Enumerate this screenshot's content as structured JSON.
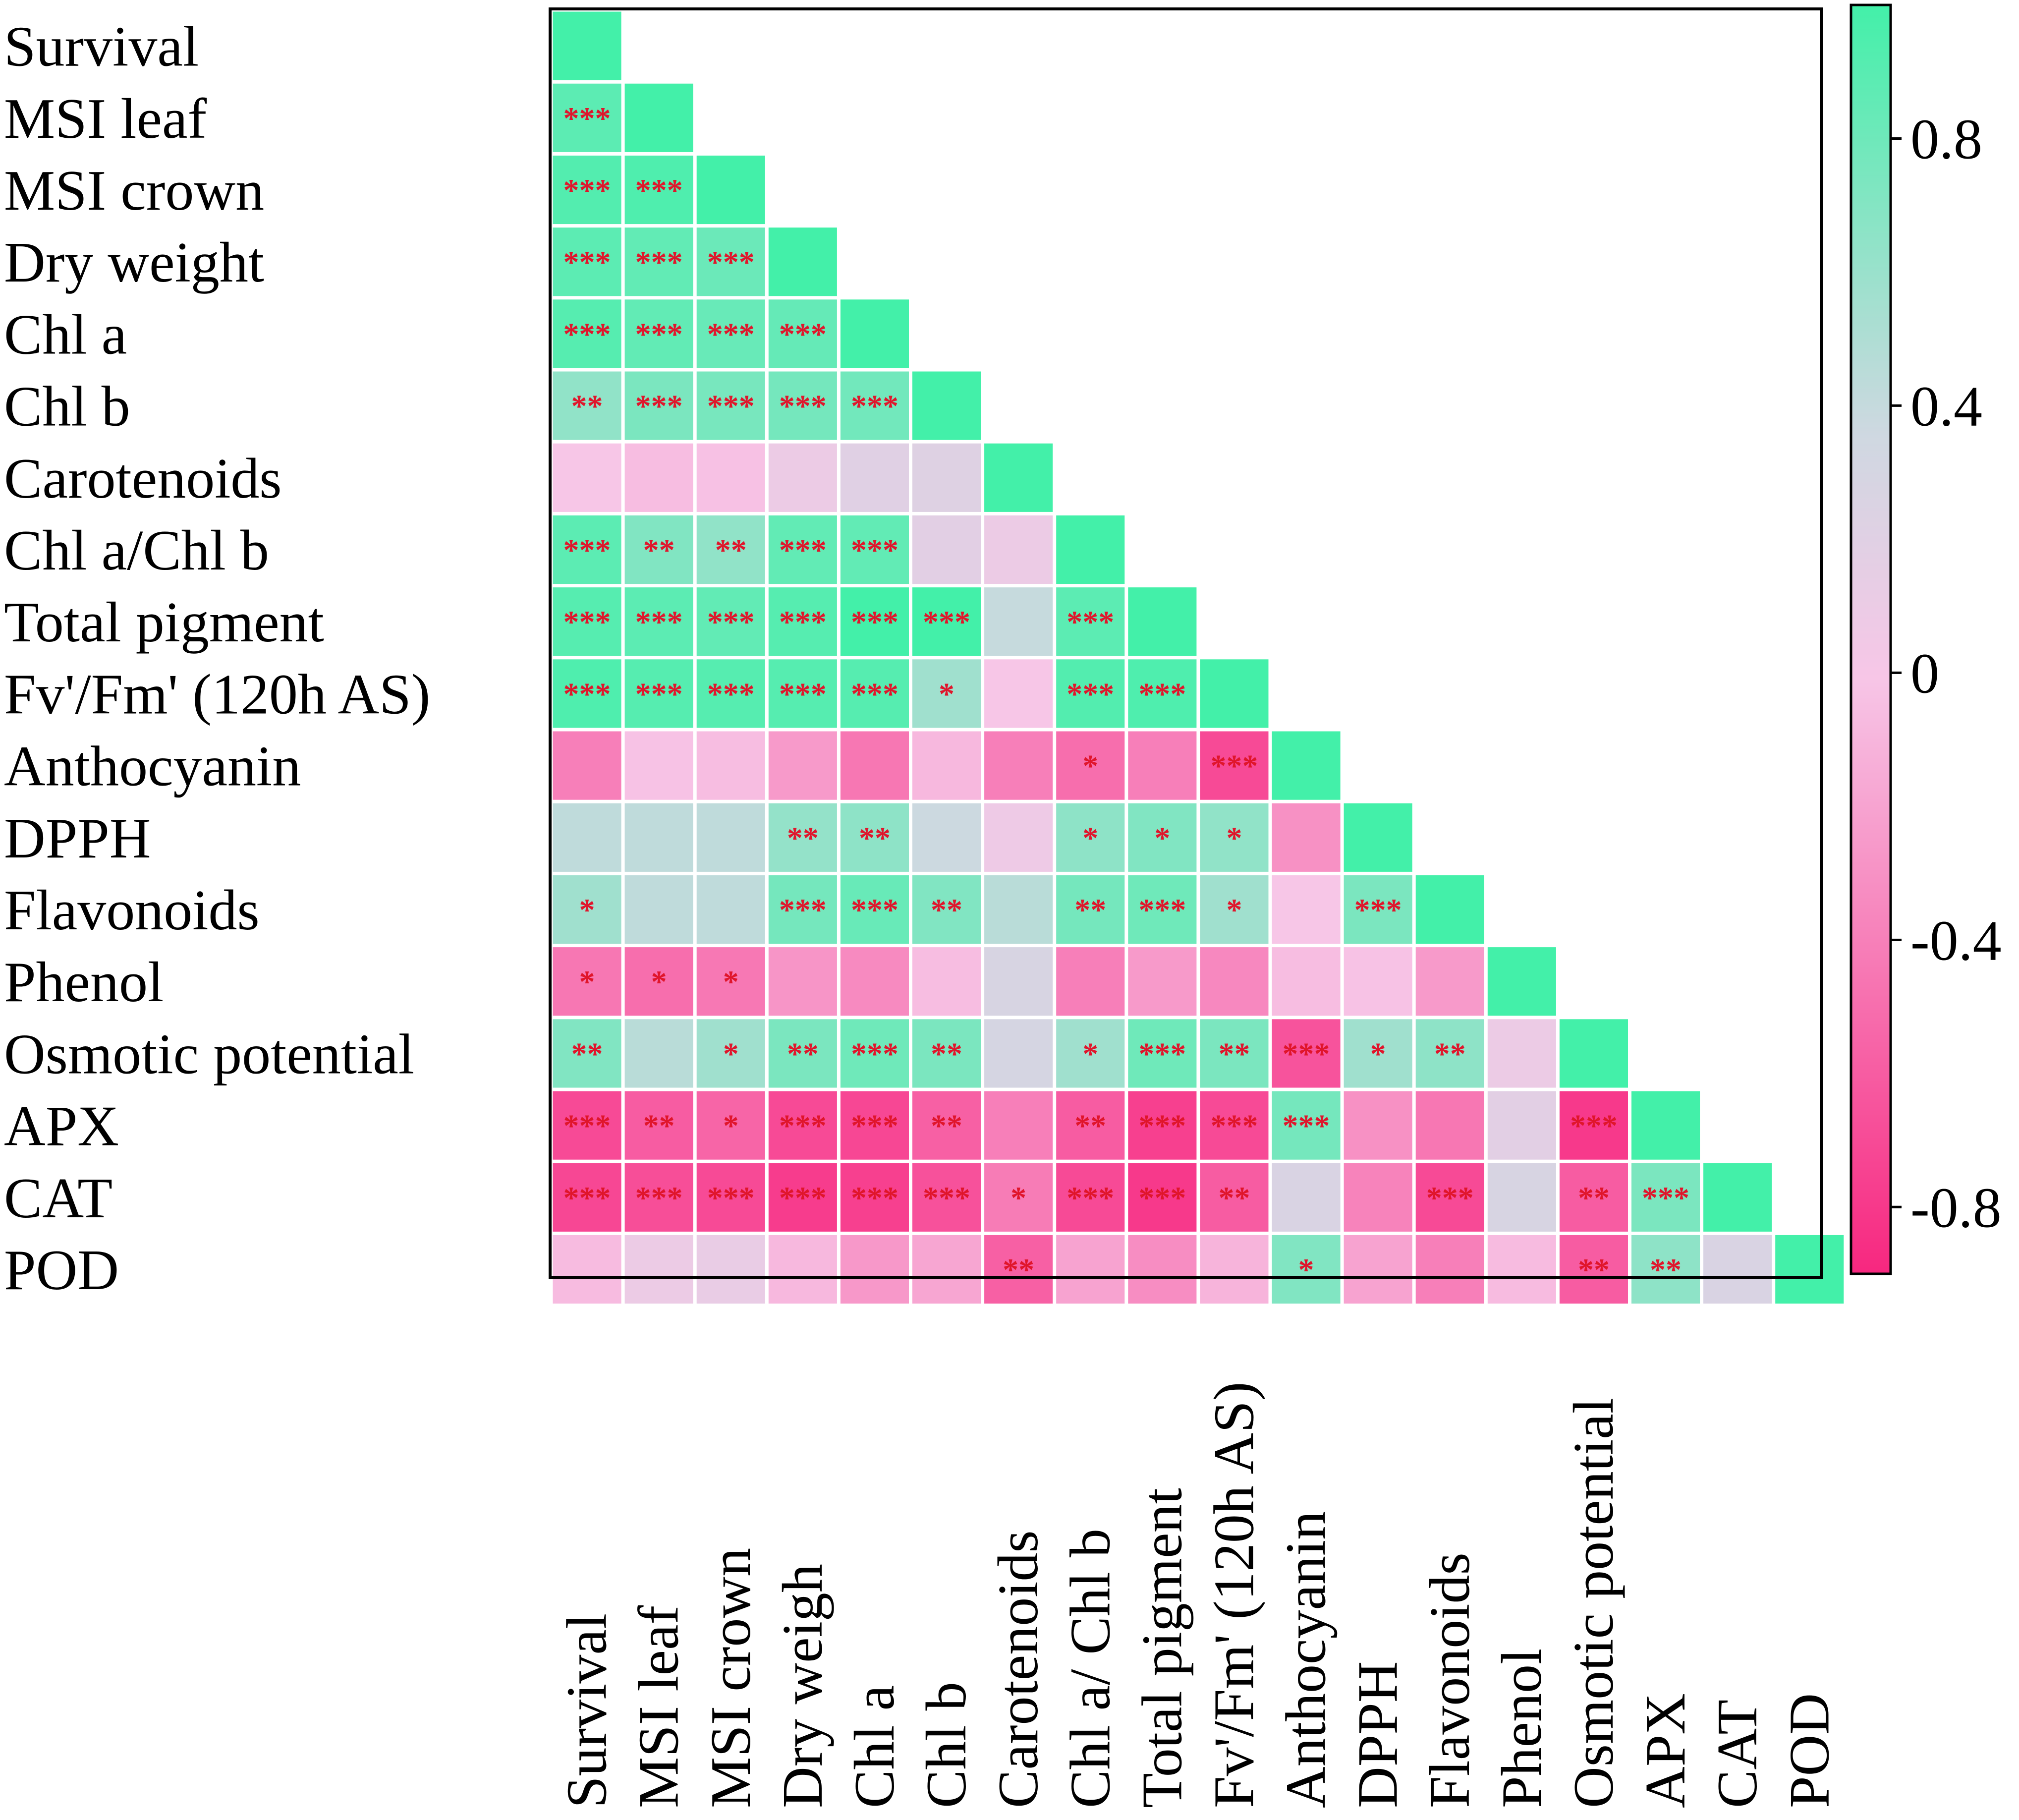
{
  "chart_data": {
    "type": "heatmap",
    "title": "",
    "variables": [
      "Survival",
      "MSI leaf",
      "MSI crown",
      "Dry weight",
      "Chl a",
      "Chl b",
      "Carotenoids",
      "Chl a/Chl b",
      "Total pigment",
      "Fv'/Fm' (120h AS)",
      "Anthocyanin",
      "DPPH",
      "Flavonoids",
      "Phenol",
      "Osmotic potential",
      "APX",
      "CAT",
      "POD"
    ],
    "x_labels": [
      "Survival",
      "MSI leaf",
      "MSI crown",
      "Dry weigh",
      "Chl a",
      "Chl b",
      "Carotenoids",
      "Chl a/ Chl b",
      "Total pigment",
      "Fv'/Fm' (120h AS)",
      "Anthocyanin",
      "DPPH",
      "Flavonoids",
      "Phenol",
      "Osmotic potential",
      "APX",
      "CAT",
      "POD"
    ],
    "colorbar": {
      "range": [
        -0.9,
        1.0
      ],
      "ticks": [
        0.8,
        0.4,
        0,
        -0.4,
        -0.8
      ],
      "tick_labels": [
        "0.8",
        "0.4",
        "0",
        "-0.4",
        "-0.8"
      ],
      "colors": {
        "negative": "#f7277f",
        "zero": "#f7c6e7",
        "mid": "#cfd8e1",
        "positive": "#43f0a9"
      }
    },
    "values": [
      [
        1.0
      ],
      [
        0.72,
        1.0
      ],
      [
        0.75,
        0.76,
        1.0
      ],
      [
        0.72,
        0.7,
        0.67,
        1.0
      ],
      [
        0.74,
        0.7,
        0.68,
        0.69,
        1.0
      ],
      [
        0.55,
        0.62,
        0.63,
        0.64,
        0.65,
        1.0
      ],
      [
        0.0,
        -0.05,
        -0.03,
        0.1,
        0.2,
        0.22,
        1.0
      ],
      [
        0.72,
        0.6,
        0.55,
        0.7,
        0.7,
        0.18,
        0.1,
        1.0
      ],
      [
        0.74,
        0.72,
        0.7,
        0.74,
        0.84,
        0.8,
        0.38,
        0.72,
        1.0
      ],
      [
        0.76,
        0.74,
        0.74,
        0.74,
        0.74,
        0.5,
        0.0,
        0.75,
        0.76,
        1.0
      ],
      [
        -0.4,
        -0.02,
        -0.05,
        -0.25,
        -0.45,
        -0.08,
        -0.4,
        -0.5,
        -0.4,
        -0.7,
        1.0
      ],
      [
        0.4,
        0.4,
        0.4,
        0.54,
        0.56,
        0.36,
        0.08,
        0.56,
        0.6,
        0.55,
        -0.3,
        1.0
      ],
      [
        0.5,
        0.4,
        0.4,
        0.64,
        0.68,
        0.6,
        0.42,
        0.64,
        0.66,
        0.5,
        0.0,
        0.62,
        1.0
      ],
      [
        -0.45,
        -0.5,
        -0.44,
        -0.28,
        -0.34,
        -0.05,
        0.28,
        -0.4,
        -0.25,
        -0.35,
        -0.05,
        -0.02,
        -0.25,
        1.0
      ],
      [
        0.6,
        0.42,
        0.5,
        0.62,
        0.66,
        0.62,
        0.3,
        0.5,
        0.66,
        0.62,
        -0.65,
        0.5,
        0.56,
        0.1,
        1.0
      ],
      [
        -0.7,
        -0.6,
        -0.55,
        -0.7,
        -0.72,
        -0.58,
        -0.4,
        -0.6,
        -0.76,
        -0.7,
        0.64,
        -0.3,
        -0.45,
        0.18,
        -0.8,
        1.0
      ],
      [
        -0.72,
        -0.68,
        -0.7,
        -0.78,
        -0.76,
        -0.66,
        -0.42,
        -0.7,
        -0.8,
        -0.6,
        0.26,
        -0.38,
        -0.7,
        0.28,
        -0.6,
        0.62,
        1.0
      ],
      [
        -0.06,
        0.1,
        0.12,
        -0.08,
        -0.26,
        -0.18,
        -0.58,
        -0.2,
        -0.32,
        -0.1,
        0.6,
        -0.2,
        -0.4,
        -0.06,
        -0.6,
        0.56,
        0.26,
        1.0
      ]
    ],
    "significance": [
      [
        ""
      ],
      [
        "***",
        ""
      ],
      [
        "***",
        "***",
        ""
      ],
      [
        "***",
        "***",
        "***",
        ""
      ],
      [
        "***",
        "***",
        "***",
        "***",
        ""
      ],
      [
        "**",
        "***",
        "***",
        "***",
        "***",
        ""
      ],
      [
        "",
        "",
        "",
        "",
        "",
        "",
        ""
      ],
      [
        "***",
        "**",
        "**",
        "***",
        "***",
        "",
        "",
        ""
      ],
      [
        "***",
        "***",
        "***",
        "***",
        "***",
        "***",
        "",
        "***",
        ""
      ],
      [
        "***",
        "***",
        "***",
        "***",
        "***",
        "*",
        "",
        "***",
        "***",
        ""
      ],
      [
        "",
        "",
        "",
        "",
        "",
        "",
        "",
        "*",
        "",
        "***",
        ""
      ],
      [
        "",
        "",
        "",
        "**",
        "**",
        "",
        "",
        "*",
        "*",
        "*",
        "",
        ""
      ],
      [
        "*",
        "",
        "",
        "***",
        "***",
        "**",
        "",
        "**",
        "***",
        "*",
        "",
        "***",
        ""
      ],
      [
        "*",
        "*",
        "*",
        "",
        "",
        "",
        "",
        "",
        "",
        "",
        "",
        "",
        "",
        ""
      ],
      [
        "**",
        "",
        "*",
        "**",
        "***",
        "**",
        "",
        "*",
        "***",
        "**",
        "***",
        "*",
        "**",
        "",
        ""
      ],
      [
        "***",
        "**",
        "*",
        "***",
        "***",
        "**",
        "",
        "**",
        "***",
        "***",
        "***",
        "",
        "",
        "",
        "***",
        ""
      ],
      [
        "***",
        "***",
        "***",
        "***",
        "***",
        "***",
        "*",
        "***",
        "***",
        "**",
        "",
        "",
        "***",
        "",
        "**",
        "***",
        ""
      ],
      [
        "",
        "",
        "",
        "",
        "",
        "",
        "**",
        "",
        "",
        "",
        "*",
        "",
        "",
        "",
        "**",
        "**",
        "",
        ""
      ]
    ]
  }
}
